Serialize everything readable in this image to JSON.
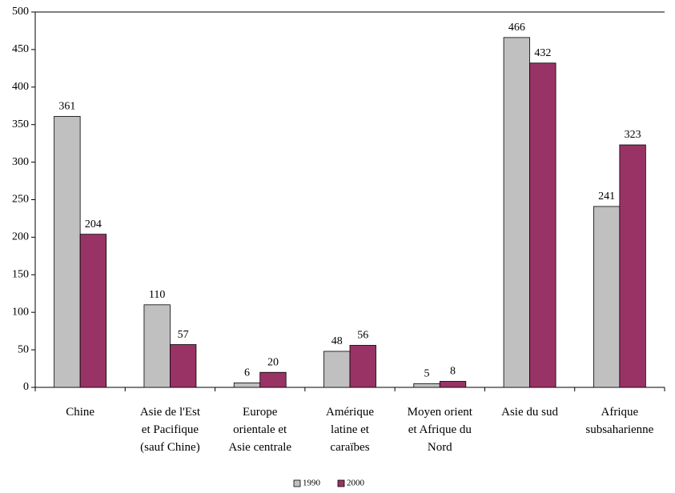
{
  "chart_data": {
    "type": "bar",
    "categories": [
      "Chine",
      "Asie de l'Est\net Pacifique\n(sauf Chine)",
      "Europe\norientale et\nAsie centrale",
      "Amérique\nlatine et\ncaraïbes",
      "Moyen orient\net Afrique du\nNord",
      "Asie du sud",
      "Afrique\nsubsaharienne"
    ],
    "series": [
      {
        "name": "1990",
        "color": "#c0c0c0",
        "values": [
          361,
          110,
          6,
          48,
          5,
          466,
          241
        ]
      },
      {
        "name": "2000",
        "color": "#993366",
        "values": [
          204,
          57,
          20,
          56,
          8,
          432,
          323
        ]
      }
    ],
    "ylim": [
      0,
      500
    ],
    "yticks": [
      0,
      50,
      100,
      150,
      200,
      250,
      300,
      350,
      400,
      450,
      500
    ],
    "grid": false,
    "legend": "bottom"
  }
}
